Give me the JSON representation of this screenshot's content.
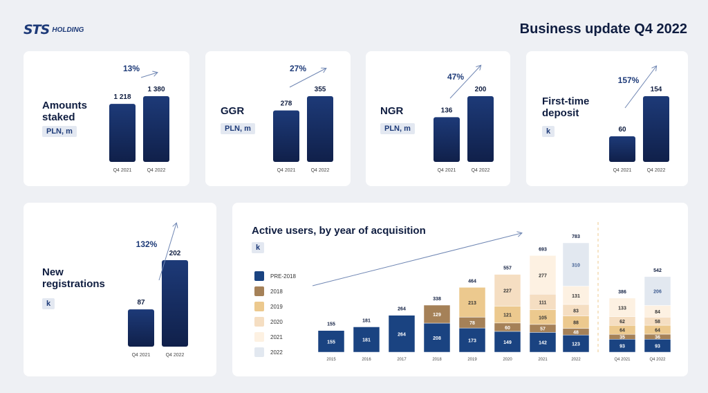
{
  "header": {
    "logo_mark": "STS",
    "logo_text": "HOLDING",
    "title": "Business update Q4 2022"
  },
  "colors": {
    "navy": "#1a2b5c",
    "bar_gradient_top": "#1d3a78",
    "bar_gradient_bottom": "#10204a",
    "arrow": "#6f86b3",
    "pct": "#1d3a78"
  },
  "chart_data": [
    {
      "type": "bar",
      "title": "Amounts staked",
      "unit": "PLN, m",
      "categories": [
        "Q4 2021",
        "Q4 2022"
      ],
      "values": [
        1218,
        1380
      ],
      "value_labels": [
        "1 218",
        "1 380"
      ],
      "growth_label": "13%"
    },
    {
      "type": "bar",
      "title": "GGR",
      "unit": "PLN, m",
      "categories": [
        "Q4 2021",
        "Q4 2022"
      ],
      "values": [
        278,
        355
      ],
      "value_labels": [
        "278",
        "355"
      ],
      "growth_label": "27%"
    },
    {
      "type": "bar",
      "title": "NGR",
      "unit": "PLN, m",
      "categories": [
        "Q4 2021",
        "Q4 2022"
      ],
      "values": [
        136,
        200
      ],
      "value_labels": [
        "136",
        "200"
      ],
      "growth_label": "47%"
    },
    {
      "type": "bar",
      "title": "First-time deposit",
      "unit": "k",
      "categories": [
        "Q4 2021",
        "Q4 2022"
      ],
      "values": [
        60,
        154
      ],
      "value_labels": [
        "60",
        "154"
      ],
      "growth_label": "157%"
    },
    {
      "type": "bar",
      "title": "New registrations",
      "unit": "k",
      "categories": [
        "Q4 2021",
        "Q4 2022"
      ],
      "values": [
        87,
        202
      ],
      "value_labels": [
        "87",
        "202"
      ],
      "growth_label": "132%"
    },
    {
      "type": "bar",
      "stacked": true,
      "title": "Active users, by year of acquisition",
      "unit": "k",
      "categories": [
        "2015",
        "2016",
        "2017",
        "2018",
        "2019",
        "2020",
        "2021",
        "2022",
        "Q4 2021",
        "Q4 2022"
      ],
      "totals": [
        155,
        181,
        264,
        338,
        464,
        557,
        693,
        783,
        386,
        542
      ],
      "series": [
        {
          "name": "PRE-2018",
          "color": "#1a4381",
          "values": [
            155,
            181,
            264,
            208,
            173,
            149,
            142,
            123,
            93,
            93
          ]
        },
        {
          "name": "2018",
          "color": "#a58158",
          "values": [
            null,
            null,
            null,
            129,
            78,
            60,
            57,
            48,
            35,
            36
          ]
        },
        {
          "name": "2019",
          "color": "#ecc98e",
          "values": [
            null,
            null,
            null,
            null,
            213,
            121,
            105,
            88,
            64,
            64
          ]
        },
        {
          "name": "2020",
          "color": "#f5dec2",
          "values": [
            null,
            null,
            null,
            null,
            null,
            227,
            111,
            83,
            62,
            58
          ]
        },
        {
          "name": "2021",
          "color": "#fdf1e2",
          "values": [
            null,
            null,
            null,
            null,
            null,
            null,
            277,
            131,
            133,
            84
          ]
        },
        {
          "name": "2022",
          "color": "#e2e8f0",
          "values": [
            null,
            null,
            null,
            null,
            null,
            null,
            null,
            310,
            null,
            206
          ]
        }
      ],
      "legend_position": "left"
    }
  ]
}
